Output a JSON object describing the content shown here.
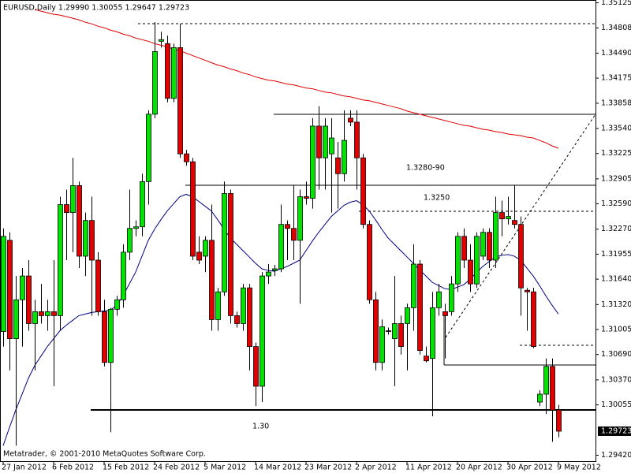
{
  "chart_data": {
    "type": "candlestick",
    "title": "EURUSD,Daily  1.29990 1.30055 1.29647 1.29723",
    "copyright": "Metatrader, © 2001-2010 MetaQuotes Software Corp.",
    "price_label": "1.29723",
    "annotations": [
      "1.3280-90",
      "1.3250",
      "1.30"
    ],
    "up_color": "#00e400",
    "down_color": "#e00000",
    "categories": [
      "27 Jan 2012",
      null,
      null,
      null,
      null,
      null,
      null,
      null,
      "6 Feb 2012",
      null,
      null,
      null,
      null,
      null,
      null,
      null,
      "15 Feb 2012",
      null,
      null,
      null,
      null,
      null,
      null,
      null,
      "24 Feb 2012",
      null,
      null,
      null,
      null,
      null,
      null,
      null,
      "5 Mar 2012",
      null,
      null,
      null,
      null,
      null,
      null,
      null,
      "14 Mar 2012",
      null,
      null,
      null,
      null,
      null,
      null,
      null,
      "23 Mar 2012",
      null,
      null,
      null,
      null,
      null,
      null,
      null,
      "2 Apr 2012",
      null,
      null,
      null,
      null,
      null,
      null,
      null,
      "11 Apr 2012",
      null,
      null,
      null,
      null,
      null,
      null,
      null,
      "20 Apr 2012",
      null,
      null,
      null,
      null,
      null,
      null,
      null,
      "30 Apr 2012",
      null,
      null,
      null,
      null,
      null,
      null,
      null,
      "9 May 2012"
    ],
    "open": [
      1.3098,
      1.3213,
      1.3089,
      1.3138,
      1.3168,
      1.3108,
      1.3123,
      1.3118,
      1.3123,
      1.3118,
      1.3258,
      1.3248,
      1.3282,
      1.3193,
      1.3238,
      1.3188,
      1.3123,
      1.3059,
      1.3126,
      1.3138,
      1.3198,
      1.3228,
      1.323,
      1.3287,
      1.3372,
      1.3464,
      1.3461,
      1.3392,
      1.3456,
      1.3322,
      1.3312,
      1.3198,
      1.3193,
      1.3213,
      1.3113,
      1.3148,
      1.3272,
      1.3118,
      1.3108,
      1.3153,
      1.3079,
      1.3029,
      1.3168,
      1.3175,
      1.3177,
      1.3233,
      1.3228,
      1.3213,
      1.3268,
      1.3266,
      1.3357,
      1.3317,
      1.3322,
      1.3317,
      1.3297,
      1.3367,
      1.3362,
      1.3317,
      1.3233,
      1.3138,
      1.3059,
      1.3099,
      1.3089,
      1.3108,
      1.3108,
      1.3128,
      1.3183,
      1.3067,
      1.3064,
      1.3128,
      1.3123,
      1.3123,
      1.3158,
      1.3218,
      1.3188,
      1.3158,
      1.3193,
      1.3223,
      1.3188,
      1.3248,
      1.324,
      1.3238,
      1.3233,
      1.315,
      1.3148,
      1.3009,
      1.3019,
      1.3054,
      1.2999
    ],
    "high": [
      1.3228,
      1.3223,
      1.3168,
      1.3178,
      1.3188,
      1.3138,
      1.3158,
      1.3138,
      1.3188,
      1.3268,
      1.3277,
      1.3317,
      1.3287,
      1.3248,
      1.3268,
      1.3198,
      1.3138,
      1.3128,
      1.3143,
      1.3208,
      1.3277,
      1.3238,
      1.3297,
      1.3377,
      1.3488,
      1.3476,
      1.3471,
      1.3461,
      1.3486,
      1.3327,
      1.3317,
      1.3218,
      1.3218,
      1.3258,
      1.3153,
      1.3287,
      1.3277,
      1.3123,
      1.3158,
      1.3158,
      1.3084,
      1.3173,
      1.3183,
      1.3182,
      1.3258,
      1.3238,
      1.3282,
      1.3277,
      1.3287,
      1.3367,
      1.3382,
      1.3367,
      1.3367,
      1.3337,
      1.3377,
      1.3377,
      1.3377,
      1.3322,
      1.3238,
      1.3148,
      1.3113,
      1.3103,
      1.3168,
      1.3118,
      1.3133,
      1.3208,
      1.3188,
      1.3079,
      1.3148,
      1.3158,
      1.3133,
      1.3168,
      1.3223,
      1.3228,
      1.3208,
      1.3223,
      1.3228,
      1.3228,
      1.3268,
      1.3263,
      1.3268,
      1.3282,
      1.3243,
      1.3153,
      1.3153,
      1.3024,
      1.3064,
      1.3064,
      1.30055
    ],
    "low": [
      1.3079,
      1.3049,
      1.2954,
      1.3079,
      1.3099,
      1.3049,
      1.3108,
      1.3099,
      1.3029,
      1.3099,
      1.3188,
      1.3198,
      1.3178,
      1.3168,
      1.3118,
      1.3118,
      1.3054,
      1.2971,
      1.3118,
      1.3128,
      1.3188,
      1.3218,
      1.3218,
      1.3258,
      1.3367,
      1.3456,
      1.3387,
      1.3387,
      1.3317,
      1.3307,
      1.3188,
      1.3183,
      1.3173,
      1.3099,
      1.3099,
      1.3143,
      1.3108,
      1.3103,
      1.3099,
      1.3049,
      1.3004,
      1.3009,
      1.3158,
      1.3168,
      1.3173,
      1.3188,
      1.3188,
      1.3133,
      1.3258,
      1.3253,
      1.3277,
      1.3277,
      1.3248,
      1.3253,
      1.3287,
      1.3357,
      1.3277,
      1.3228,
      1.3133,
      1.3049,
      1.3049,
      1.3094,
      1.3029,
      1.3069,
      1.3049,
      1.3099,
      1.3069,
      1.3059,
      1.2991,
      1.3118,
      1.3064,
      1.3118,
      1.3148,
      1.3178,
      1.3148,
      1.3153,
      1.3188,
      1.3178,
      1.3178,
      1.3218,
      1.3233,
      1.3228,
      1.3118,
      1.3099,
      1.3077,
      1.3004,
      1.2994,
      1.2959,
      1.29647
    ],
    "close": [
      1.3218,
      1.3089,
      1.3138,
      1.3168,
      1.3108,
      1.3123,
      1.3118,
      1.3123,
      1.3118,
      1.3258,
      1.3248,
      1.3282,
      1.3193,
      1.3238,
      1.3188,
      1.3123,
      1.3059,
      1.3126,
      1.3138,
      1.3198,
      1.3228,
      1.323,
      1.3287,
      1.3372,
      1.3451,
      1.3466,
      1.3392,
      1.3456,
      1.3322,
      1.3312,
      1.3193,
      1.3188,
      1.3213,
      1.3113,
      1.3148,
      1.3272,
      1.3118,
      1.3108,
      1.3153,
      1.3079,
      1.3029,
      1.3168,
      1.3173,
      1.3177,
      1.3233,
      1.3228,
      1.3213,
      1.3268,
      1.3266,
      1.3357,
      1.3317,
      1.3357,
      1.3342,
      1.3297,
      1.3339,
      1.3362,
      1.3317,
      1.3233,
      1.3138,
      1.3059,
      1.3104,
      1.3098,
      1.3108,
      1.3079,
      1.3128,
      1.3183,
      1.3074,
      1.3061,
      1.3128,
      1.3148,
      1.3118,
      1.3158,
      1.3218,
      1.3188,
      1.3158,
      1.3218,
      1.3223,
      1.3188,
      1.3248,
      1.324,
      1.3243,
      1.3233,
      1.3153,
      1.3148,
      1.3079,
      1.3019,
      1.3054,
      1.2999,
      1.29723
    ],
    "series": [
      {
        "color": "#e00000",
        "values": [
          null,
          null,
          null,
          null,
          null,
          1.3504,
          1.3502,
          1.35,
          1.3498,
          1.3497,
          1.3495,
          1.3493,
          1.3491,
          1.3488,
          1.3486,
          1.3483,
          1.3481,
          1.3478,
          1.3476,
          1.3473,
          1.3471,
          1.3468,
          1.3466,
          1.3464,
          1.3461,
          1.3459,
          1.3457,
          1.3454,
          1.3452,
          1.3449,
          1.3446,
          1.3443,
          1.344,
          1.3437,
          1.3434,
          1.3432,
          1.3429,
          1.3427,
          1.3424,
          1.3422,
          1.3419,
          1.3417,
          1.3415,
          1.3414,
          1.3412,
          1.341,
          1.3409,
          1.3407,
          1.3405,
          1.3404,
          1.3402,
          1.34,
          1.3399,
          1.3397,
          1.3395,
          1.3394,
          1.3392,
          1.339,
          1.3389,
          1.3387,
          1.3385,
          1.3383,
          1.3381,
          1.3379,
          1.3376,
          1.3374,
          1.3372,
          1.337,
          1.3368,
          1.3366,
          1.3364,
          1.3362,
          1.336,
          1.3358,
          1.3357,
          1.3355,
          1.3353,
          1.3352,
          1.335,
          1.3349,
          1.3347,
          1.3346,
          1.3345,
          1.3343,
          1.3342,
          1.3339,
          1.3336,
          1.3332,
          1.3329
        ]
      },
      {
        "color": "#000080",
        "values": [
          1.2954,
          1.2977,
          1.2999,
          1.3019,
          1.3039,
          1.3055,
          1.3067,
          1.3079,
          1.3089,
          1.3099,
          1.3106,
          1.3112,
          1.3118,
          1.312,
          1.3122,
          1.3123,
          1.3124,
          1.3125,
          1.3131,
          1.3143,
          1.3158,
          1.3173,
          1.3193,
          1.3213,
          1.3227,
          1.3239,
          1.325,
          1.3259,
          1.3268,
          1.3271,
          1.3268,
          1.3262,
          1.3256,
          1.325,
          1.3239,
          1.3227,
          1.3216,
          1.3208,
          1.32,
          1.3192,
          1.3184,
          1.3177,
          1.3175,
          1.3174,
          1.3177,
          1.318,
          1.3184,
          1.3188,
          1.32,
          1.3212,
          1.3223,
          1.3233,
          1.3243,
          1.325,
          1.3257,
          1.3261,
          1.3263,
          1.3258,
          1.325,
          1.3239,
          1.3227,
          1.3216,
          1.3208,
          1.32,
          1.3192,
          1.3184,
          1.3176,
          1.3168,
          1.316,
          1.3156,
          1.3152,
          1.3151,
          1.3154,
          1.3157,
          1.3164,
          1.3172,
          1.318,
          1.3186,
          1.3192,
          1.3194,
          1.3195,
          1.3193,
          1.3188,
          1.3178,
          1.3168,
          1.3156,
          1.3143,
          1.3131,
          1.312
        ]
      }
    ],
    "ylim": [
      1.29345,
      1.3516
    ],
    "yticks": [
      {
        "value": 1.35125,
        "label": "1.35125"
      },
      {
        "value": 1.34808,
        "label": "1.34808"
      },
      {
        "value": 1.3449,
        "label": "1.34490"
      },
      {
        "value": 1.34175,
        "label": "1.34175"
      },
      {
        "value": 1.33858,
        "label": "1.33858"
      },
      {
        "value": 1.3354,
        "label": "1.33540"
      },
      {
        "value": 1.33225,
        "label": "1.33225"
      },
      {
        "value": 1.32905,
        "label": "1.32905"
      },
      {
        "value": 1.3259,
        "label": "1.32590"
      },
      {
        "value": 1.3227,
        "label": "1.32270"
      },
      {
        "value": 1.31955,
        "label": "1.31955"
      },
      {
        "value": 1.3164,
        "label": "1.31640"
      },
      {
        "value": 1.3132,
        "label": "1.31320"
      },
      {
        "value": 1.31005,
        "label": "1.31005"
      },
      {
        "value": 1.3069,
        "label": "1.30690"
      },
      {
        "value": 1.3037,
        "label": "1.30370"
      },
      {
        "value": 1.30055,
        "label": "1.30055"
      },
      {
        "value": 1.2942,
        "label": "1.29420"
      }
    ]
  }
}
